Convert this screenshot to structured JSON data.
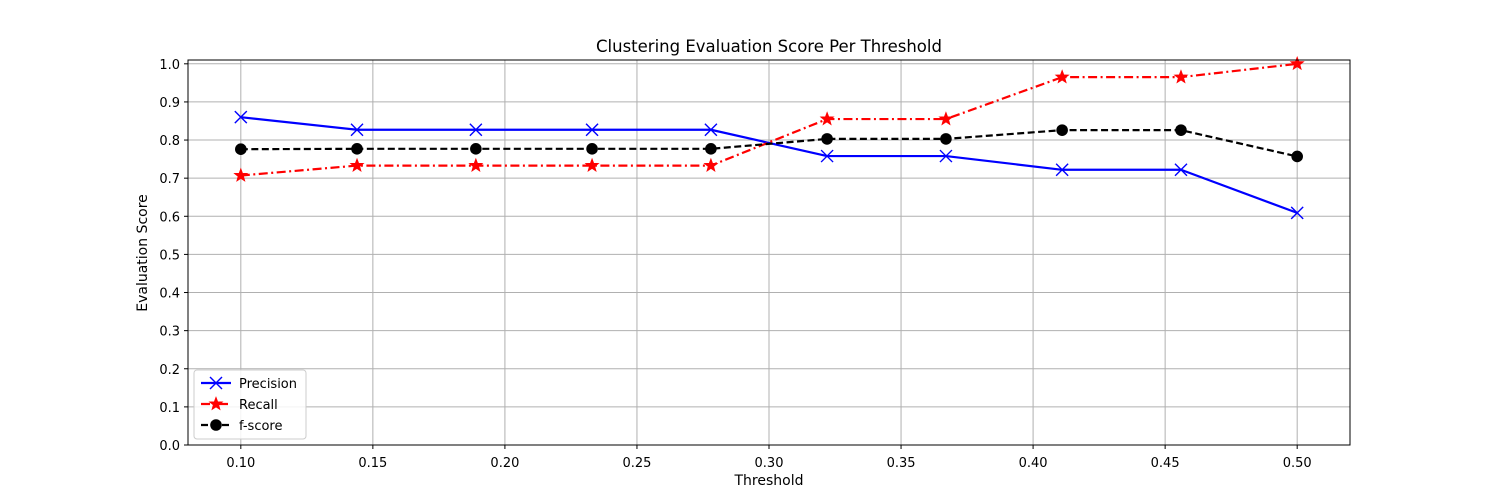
{
  "chart_data": {
    "type": "line",
    "title": "Clustering Evaluation Score Per Threshold",
    "xlabel": "Threshold",
    "ylabel": "Evaluation Score",
    "xlim": [
      0.08,
      0.52
    ],
    "ylim": [
      0.0,
      1.01
    ],
    "xticks": [
      "0.10",
      "0.15",
      "0.20",
      "0.25",
      "0.30",
      "0.35",
      "0.40",
      "0.45",
      "0.50"
    ],
    "yticks": [
      "0.0",
      "0.1",
      "0.2",
      "0.3",
      "0.4",
      "0.5",
      "0.6",
      "0.7",
      "0.8",
      "0.9",
      "1.0"
    ],
    "grid": true,
    "legend_position": "lower-left",
    "x": [
      0.1,
      0.144,
      0.189,
      0.233,
      0.278,
      0.322,
      0.367,
      0.411,
      0.456,
      0.5
    ],
    "series": [
      {
        "name": "Precision",
        "color": "#0000ff",
        "linestyle": "solid",
        "marker": "x",
        "values": [
          0.86,
          0.827,
          0.827,
          0.827,
          0.827,
          0.758,
          0.758,
          0.722,
          0.722,
          0.609
        ]
      },
      {
        "name": "Recall",
        "color": "#ff0000",
        "linestyle": "dashdot",
        "marker": "star",
        "values": [
          0.707,
          0.733,
          0.733,
          0.733,
          0.733,
          0.855,
          0.855,
          0.965,
          0.965,
          1.0
        ]
      },
      {
        "name": "f-score",
        "color": "#000000",
        "linestyle": "dashed",
        "marker": "circle",
        "values": [
          0.776,
          0.777,
          0.777,
          0.777,
          0.777,
          0.803,
          0.803,
          0.826,
          0.826,
          0.757
        ]
      }
    ]
  }
}
